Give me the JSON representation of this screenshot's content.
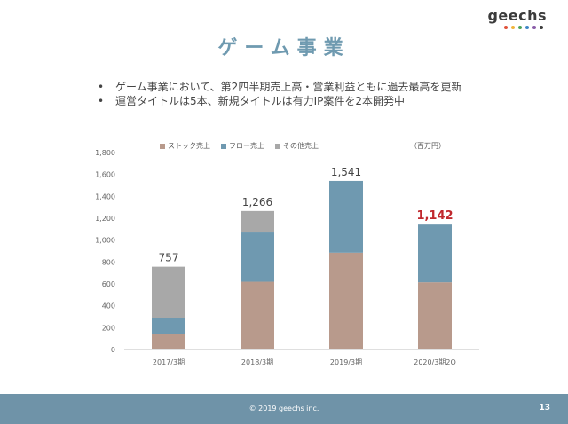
{
  "logo": {
    "text": "geechs",
    "dot_colors": [
      "#e0523a",
      "#f0b43c",
      "#4fa35a",
      "#3f86c6",
      "#8a5ca8",
      "#3c3c3c"
    ]
  },
  "title": "ゲーム事業",
  "bullets": [
    "ゲーム事業において、第2四半期売上高・営業利益ともに過去最高を更新",
    "運営タイトルは5本、新規タイトルは有力IP案件を2本開発中"
  ],
  "unit_label": "（百万円）",
  "chart_data": {
    "type": "bar",
    "stacked": true,
    "categories": [
      "2017/3期",
      "2018/3期",
      "2019/3期",
      "2020/3期2Q"
    ],
    "series": [
      {
        "name": "ストック売上",
        "color": "#b89a8c",
        "values": [
          140,
          620,
          885,
          615
        ]
      },
      {
        "name": "フロー売上",
        "color": "#6f99b0",
        "values": [
          150,
          450,
          656,
          527
        ]
      },
      {
        "name": "その他売上",
        "color": "#a8a8a8",
        "values": [
          467,
          196,
          0,
          0
        ]
      }
    ],
    "totals": [
      757,
      1266,
      1541,
      1142
    ],
    "total_labels": [
      "757",
      "1,266",
      "1,541",
      "1,142"
    ],
    "total_label_colors": [
      "#444444",
      "#444444",
      "#444444",
      "#c0282d"
    ],
    "yticks": [
      "0",
      "200",
      "400",
      "600",
      "800",
      "1,000",
      "1,200",
      "1,400",
      "1,600",
      "1,800"
    ],
    "ylim": [
      0,
      1800
    ],
    "legend_position": "top"
  },
  "footer": {
    "copyright": "© 2019 geechs inc.",
    "page": "13"
  }
}
